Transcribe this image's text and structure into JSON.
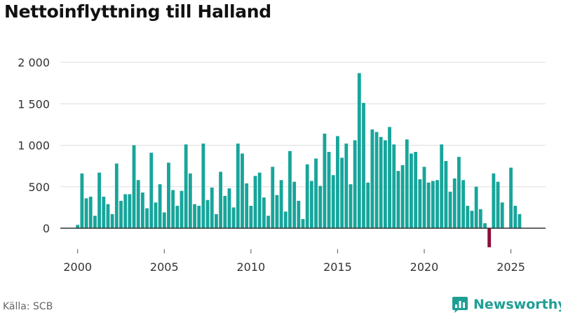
{
  "title": "Nettoinflyttning till Halland",
  "source": "Källa: SCB",
  "brand": {
    "name": "Newsworthy",
    "icon": "bar-chart-logo-icon"
  },
  "colors": {
    "positive": "#17a59b",
    "negative": "#8e0d3a",
    "grid": "#dddddd",
    "axis": "#333333",
    "brand": "#1f9e93"
  },
  "chart_data": {
    "type": "bar",
    "title": "Nettoinflyttning till Halland",
    "xlabel": "",
    "ylabel": "",
    "ylim": [
      -250,
      2000
    ],
    "xlim": [
      1999.0,
      2027.0
    ],
    "y_ticks": [
      0,
      500,
      1000,
      1500,
      2000
    ],
    "y_tick_labels": [
      "0",
      "500",
      "1 000",
      "1 500",
      "2 000"
    ],
    "x_ticks": [
      2000,
      2005,
      2010,
      2015,
      2020,
      2025
    ],
    "x_tick_labels": [
      "2000",
      "2005",
      "2010",
      "2015",
      "2020",
      "2025"
    ],
    "grid": true,
    "series": [
      {
        "start_year": 2000,
        "start_quarter": 1,
        "periods_per_year": 4,
        "values": [
          40,
          660,
          360,
          380,
          150,
          670,
          380,
          290,
          170,
          780,
          330,
          410,
          410,
          1000,
          580,
          430,
          240,
          910,
          310,
          530,
          190,
          790,
          460,
          270,
          450,
          1010,
          660,
          290,
          270,
          1020,
          340,
          490,
          170,
          680,
          390,
          480,
          250,
          1020,
          900,
          540,
          270,
          630,
          670,
          370,
          150,
          740,
          400,
          580,
          200,
          930,
          560,
          330,
          110,
          770,
          570,
          840,
          510,
          1140,
          920,
          640,
          1110,
          850,
          1020,
          530,
          1060,
          1870,
          1510,
          550,
          1190,
          1160,
          1100,
          1060,
          1220,
          1010,
          690,
          760,
          1070,
          900,
          920,
          590,
          740,
          550,
          570,
          580,
          1010,
          810,
          440,
          600,
          860,
          580,
          270,
          210,
          500,
          230,
          60,
          -230,
          660,
          560,
          310,
          0,
          730,
          270,
          170
        ]
      }
    ]
  }
}
